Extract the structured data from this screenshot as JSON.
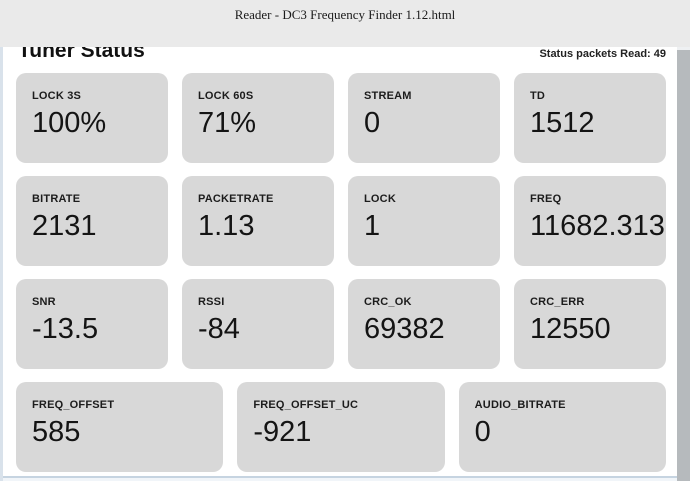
{
  "window": {
    "title": "Reader - DC3 Frequency Finder 1.12.html"
  },
  "page": {
    "heading": "Tuner Status",
    "status_counter": "Status packets Read: 49"
  },
  "cards": [
    {
      "label": "LOCK 3S",
      "value": "100%"
    },
    {
      "label": "LOCK 60S",
      "value": "71%"
    },
    {
      "label": "STREAM",
      "value": "0"
    },
    {
      "label": "TD",
      "value": "1512"
    },
    {
      "label": "BITRATE",
      "value": "2131"
    },
    {
      "label": "PACKETRATE",
      "value": "1.13"
    },
    {
      "label": "LOCK",
      "value": "1"
    },
    {
      "label": "FREQ",
      "value": "11682.313"
    },
    {
      "label": "SNR",
      "value": "-13.5"
    },
    {
      "label": "RSSI",
      "value": "-84"
    },
    {
      "label": "CRC_OK",
      "value": "69382"
    },
    {
      "label": "CRC_ERR",
      "value": "12550"
    },
    {
      "label": "FREQ_OFFSET",
      "value": "585"
    },
    {
      "label": "FREQ_OFFSET_UC",
      "value": "-921"
    },
    {
      "label": "AUDIO_BITRATE",
      "value": "0"
    }
  ],
  "colors": {
    "titlebar_bg": "#eaeaea",
    "card_bg": "#d8d8d8",
    "scrollbar_thumb": "#b6babd",
    "window_edge": "#d9e2eb",
    "text": "#1a1a1a"
  }
}
